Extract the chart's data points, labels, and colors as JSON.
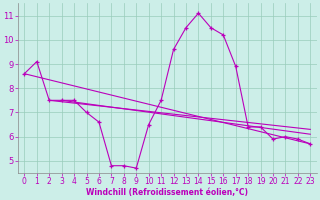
{
  "xlabel": "Windchill (Refroidissement éolien,°C)",
  "ylabel": "",
  "bg_color": "#cceee8",
  "line_color": "#bb00bb",
  "marker": "+",
  "xlim": [
    -0.5,
    23.5
  ],
  "ylim": [
    4.5,
    11.5
  ],
  "yticks": [
    5,
    6,
    7,
    8,
    9,
    10,
    11
  ],
  "xticks": [
    0,
    1,
    2,
    3,
    4,
    5,
    6,
    7,
    8,
    9,
    10,
    11,
    12,
    13,
    14,
    15,
    16,
    17,
    18,
    19,
    20,
    21,
    22,
    23
  ],
  "grid_color": "#99ccbb",
  "series": [
    {
      "x": [
        0,
        1,
        2,
        3,
        4,
        5,
        6,
        7,
        8,
        9,
        10,
        11,
        12,
        13,
        14,
        15,
        16,
        17,
        18,
        19,
        20,
        21,
        22,
        23
      ],
      "y": [
        8.6,
        9.1,
        7.5,
        7.5,
        7.5,
        7.0,
        6.6,
        4.8,
        4.8,
        4.7,
        6.5,
        7.5,
        9.6,
        10.5,
        11.1,
        10.5,
        10.2,
        8.9,
        6.4,
        6.4,
        5.9,
        6.0,
        5.9,
        5.7
      ]
    },
    {
      "x": [
        0,
        23
      ],
      "y": [
        8.6,
        5.7
      ]
    },
    {
      "x": [
        2,
        23
      ],
      "y": [
        7.5,
        6.3
      ]
    },
    {
      "x": [
        3,
        23
      ],
      "y": [
        7.5,
        6.1
      ]
    }
  ],
  "tick_fontsize": 5.5,
  "xlabel_fontsize": 5.5,
  "linewidth": 0.8,
  "markersize": 3.5,
  "markeredgewidth": 0.9
}
